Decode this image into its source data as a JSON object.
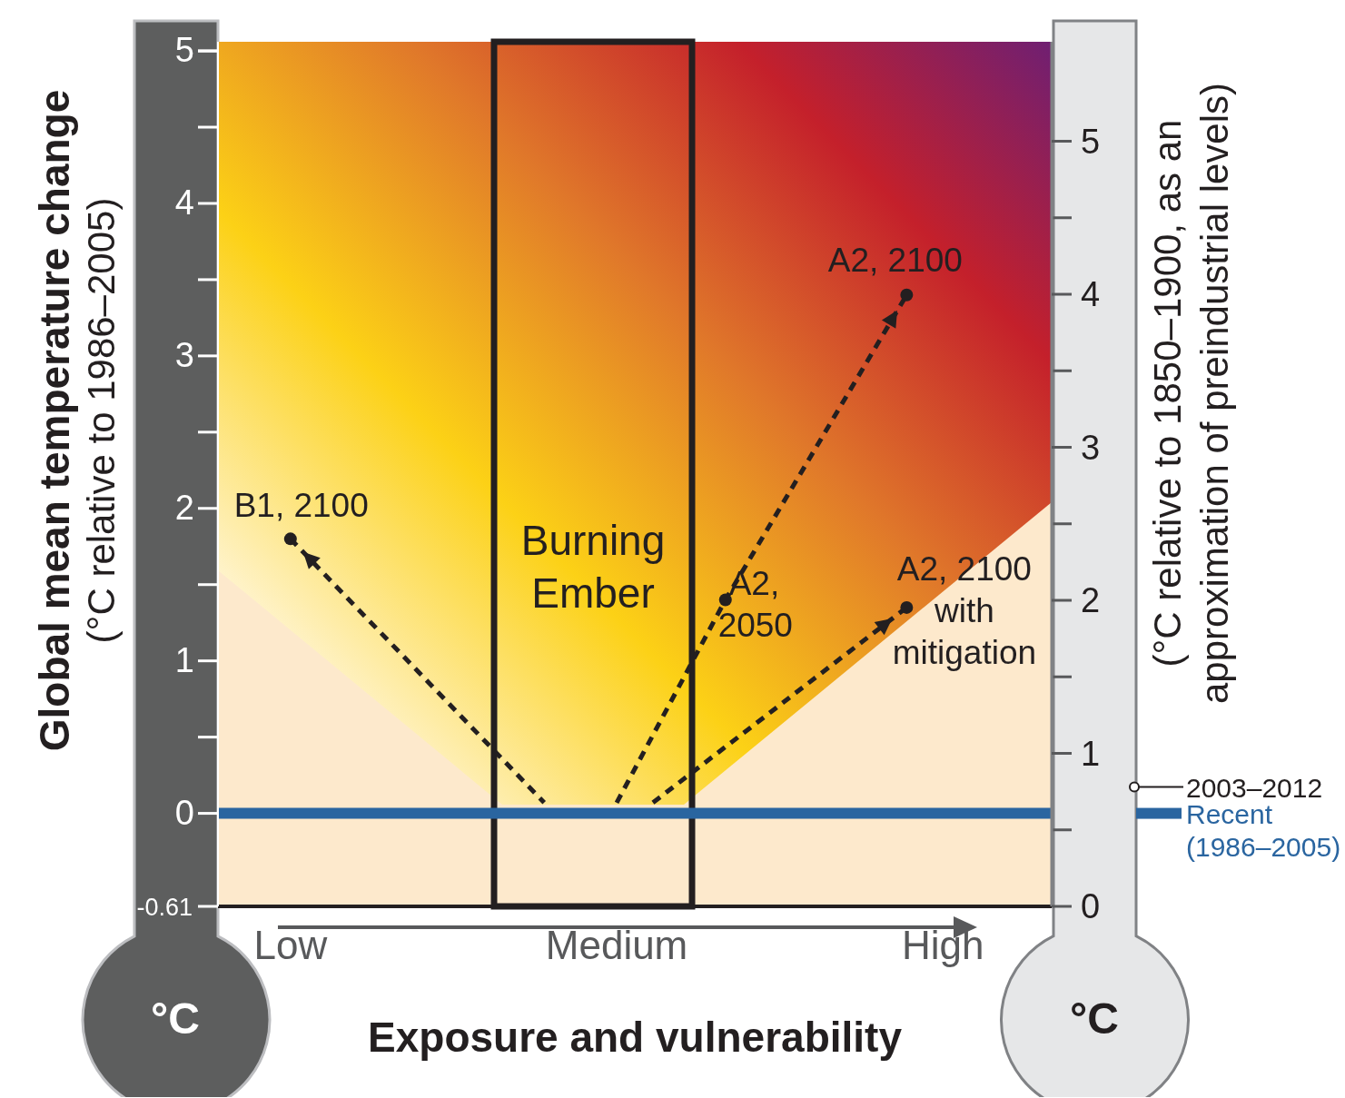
{
  "chart_data": {
    "type": "scatter",
    "xlabel": "Exposure and vulnerability",
    "ylabel": "Global mean temperature change (°C relative to 1986–2005)",
    "y2label": "(°C relative to 1850–1900, as an approximation of preindustrial levels)",
    "categories": [
      null,
      null,
      "Low",
      null,
      null,
      null,
      null,
      null,
      null,
      null,
      null,
      "Medium",
      null,
      null,
      null,
      null,
      null,
      null,
      null,
      null,
      "High",
      null,
      null,
      null
    ],
    "ylim": [
      -0.61,
      5.06
    ],
    "yticks": [
      {
        "value": -0.61,
        "label": "-0.61"
      },
      0,
      1,
      2,
      3,
      4,
      5
    ],
    "y2lim": [
      0,
      5.65
    ],
    "y2ticks": [
      0,
      1,
      2,
      3,
      4,
      5
    ],
    "marker": "circle",
    "series": [
      {
        "color": "#231f20",
        "values": [
          null,
          null,
          1.8,
          null,
          null,
          null,
          null,
          null,
          null,
          null,
          null,
          null,
          null,
          null,
          1.4,
          null,
          null,
          null,
          null,
          3.4,
          null,
          null,
          null,
          null
        ]
      },
      {
        "color": "#231f20",
        "values": [
          null,
          null,
          null,
          null,
          null,
          null,
          null,
          null,
          null,
          null,
          null,
          null,
          null,
          null,
          null,
          null,
          null,
          null,
          null,
          1.35,
          null,
          null,
          null,
          null
        ]
      },
      {
        "type": "line",
        "color": "#231f20",
        "line_style": "dashed",
        "marker": "none",
        "values": [
          null,
          null,
          1.8,
          null,
          null,
          null,
          null,
          null,
          null,
          0.07,
          null,
          null,
          null,
          null,
          null,
          null,
          null,
          null,
          null,
          null,
          null,
          null,
          null,
          null
        ]
      },
      {
        "type": "line",
        "color": "#231f20",
        "line_style": "dashed",
        "marker": "none",
        "values": [
          null,
          null,
          null,
          null,
          null,
          null,
          null,
          null,
          null,
          null,
          null,
          0.07,
          null,
          null,
          1.4,
          null,
          null,
          null,
          null,
          3.4,
          null,
          null,
          null,
          null
        ]
      },
      {
        "type": "line",
        "color": "#231f20",
        "line_style": "dashed",
        "marker": "none",
        "values": [
          null,
          null,
          null,
          null,
          null,
          null,
          null,
          null,
          null,
          null,
          null,
          null,
          0.07,
          null,
          null,
          null,
          null,
          null,
          null,
          1.35,
          null,
          null,
          null,
          null
        ]
      }
    ],
    "ref_lines": [
      {
        "axis": "y",
        "value": 0,
        "label": "Recent (1986–2005)",
        "color": "#2a65a0"
      },
      {
        "axis": "y2",
        "value": 0.78,
        "label": "2003–2012",
        "color": "#231f20"
      }
    ],
    "annotations": [
      "°C",
      "°C",
      "Burning Ember",
      "B1, 2100",
      "A2, 2050",
      "A2, 2100",
      "A2, 2100 with mitigation"
    ]
  }
}
